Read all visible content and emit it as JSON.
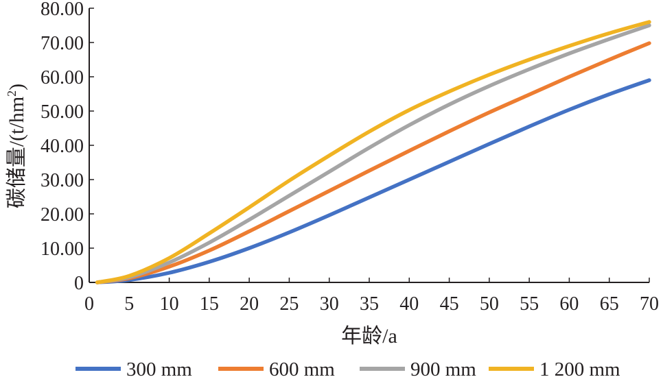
{
  "chart_data": {
    "type": "line",
    "title": "",
    "xlabel": "年龄/a",
    "ylabel": "碳储量/(t/hm²)",
    "ylabel_base": "碳储量/(t/hm",
    "ylabel_sup": "2",
    "ylabel_close": ")",
    "xlim": [
      0,
      70
    ],
    "ylim": [
      0,
      80
    ],
    "x_ticks": [
      "0",
      "5",
      "10",
      "15",
      "20",
      "25",
      "30",
      "35",
      "40",
      "45",
      "50",
      "55",
      "60",
      "65",
      "70"
    ],
    "y_ticks": [
      "0",
      "10.00",
      "20.00",
      "30.00",
      "40.00",
      "50.00",
      "60.00",
      "70.00",
      "80.00"
    ],
    "grid": false,
    "legend_position": "bottom",
    "x": [
      1,
      5,
      10,
      15,
      20,
      25,
      30,
      35,
      40,
      45,
      50,
      55,
      60,
      65,
      70
    ],
    "series": [
      {
        "name": "300 mm",
        "color": "#4472c4",
        "values": [
          0,
          0.7,
          2.8,
          6.0,
          10.0,
          14.6,
          19.6,
          24.8,
          30.0,
          35.2,
          40.4,
          45.5,
          50.4,
          54.9,
          59.0
        ]
      },
      {
        "name": "600 mm",
        "color": "#ed7d31",
        "values": [
          0,
          1.2,
          4.6,
          9.3,
          14.9,
          20.8,
          26.7,
          32.6,
          38.4,
          44.1,
          49.6,
          54.8,
          60.0,
          65.0,
          69.8
        ]
      },
      {
        "name": "900 mm",
        "color": "#a5a5a5",
        "values": [
          0,
          1.5,
          5.8,
          11.6,
          18.3,
          25.3,
          32.3,
          39.3,
          45.9,
          51.9,
          57.3,
          62.2,
          66.8,
          71.0,
          75.0
        ]
      },
      {
        "name": "1 200 mm",
        "color": "#f0b323",
        "values": [
          0,
          1.9,
          7.1,
          14.3,
          21.9,
          29.7,
          37.0,
          44.0,
          50.3,
          55.7,
          60.6,
          65.0,
          69.0,
          72.7,
          76.0
        ]
      }
    ]
  }
}
